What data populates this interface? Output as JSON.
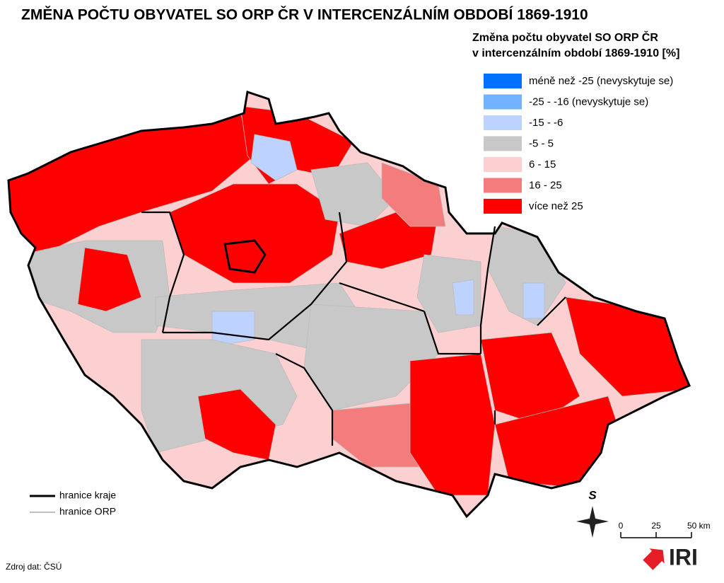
{
  "title": "ZMĚNA POČTU OBYVATEL SO ORP ČR V INTERCENZÁLNÍM OBDOBÍ 1869-1910",
  "legend": {
    "title": [
      "Změna počtu obyvatel SO ORP ČR",
      "v intercenzálním období 1869-1910 [%]"
    ],
    "items": [
      {
        "label": "méně než -25 (nevyskytuje se)",
        "color": "#0070ff"
      },
      {
        "label": "-25 - -16 (nevyskytuje se)",
        "color": "#73b2ff"
      },
      {
        "label": "-15 - -6",
        "color": "#bed2ff"
      },
      {
        "label": "-5 - 5",
        "color": "#c8c8c8"
      },
      {
        "label": "6 - 15",
        "color": "#fcd0d0"
      },
      {
        "label": "16 - 25",
        "color": "#f47c7c"
      },
      {
        "label": "více než 25",
        "color": "#ff0000"
      }
    ]
  },
  "boundaries": [
    "hranice kraje",
    "hranice ORP"
  ],
  "north": "S",
  "scale": [
    "0",
    "25",
    "50 km"
  ],
  "source": "Zdroj dat: ČSÚ",
  "logo": "IRI"
}
